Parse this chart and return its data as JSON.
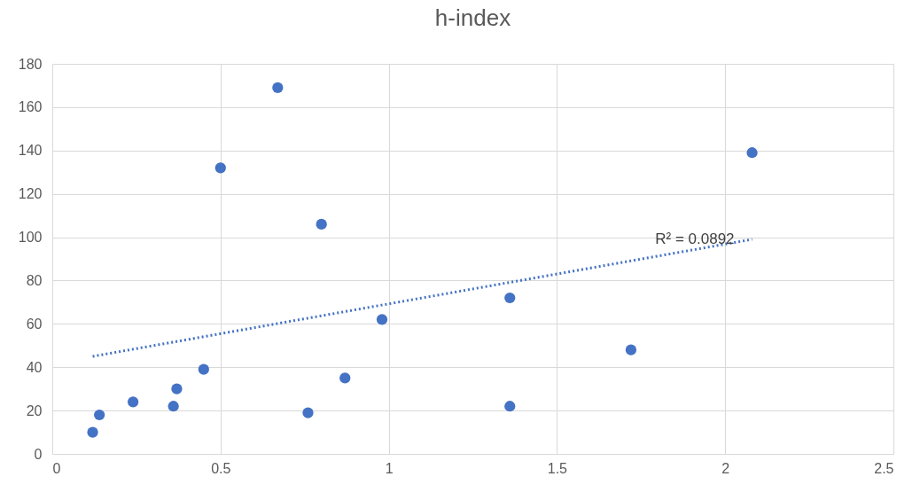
{
  "chart_data": {
    "type": "scatter",
    "title": "h-index",
    "xlim": [
      0,
      2.5
    ],
    "xticks": [
      0,
      0.5,
      1,
      1.5,
      2,
      2.5
    ],
    "ylim": [
      0,
      180
    ],
    "yticks": [
      0,
      20,
      40,
      60,
      80,
      100,
      120,
      140,
      160,
      180
    ],
    "grid": true,
    "series": [
      {
        "color": "#4472c4",
        "marker": "circle",
        "x": [
          0.12,
          0.14,
          0.24,
          0.37,
          0.36,
          0.45,
          0.5,
          0.67,
          0.76,
          0.8,
          0.87,
          0.98,
          1.36,
          1.36,
          1.72,
          2.08
        ],
        "values": [
          10,
          18,
          24,
          30,
          22,
          39,
          132,
          169,
          19,
          106,
          35,
          62,
          72,
          22,
          48,
          139
        ]
      },
      {
        "type": "line",
        "color": "#4472c4",
        "line_style": "dotted",
        "marker": "none",
        "x": [
          0.12,
          2.08
        ],
        "values": [
          45,
          99
        ]
      }
    ],
    "annotations": [
      "R² = 0.0892"
    ]
  }
}
